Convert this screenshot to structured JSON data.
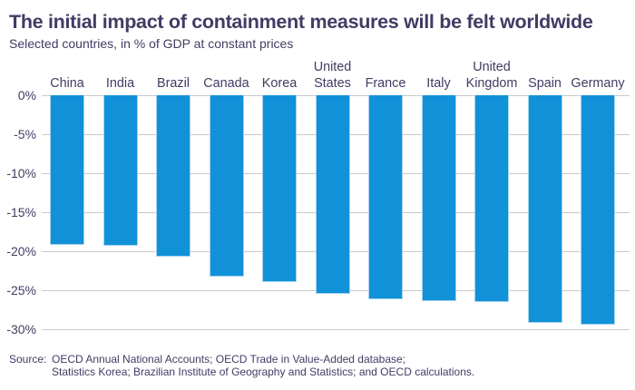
{
  "header": {
    "title": "The initial impact of containment measures will be felt worldwide",
    "subtitle": "Selected countries, in % of GDP at constant prices"
  },
  "chart_data": {
    "type": "bar",
    "title": "The initial impact of containment measures will be felt worldwide",
    "subtitle": "Selected countries, in % of GDP at constant prices",
    "categories": [
      "China",
      "India",
      "Brazil",
      "Canada",
      "Korea",
      "United States",
      "France",
      "Italy",
      "United Kingdom",
      "Spain",
      "Germany"
    ],
    "category_label_lines": [
      [
        "China"
      ],
      [
        "India"
      ],
      [
        "Brazil"
      ],
      [
        "Canada"
      ],
      [
        "Korea"
      ],
      [
        "United",
        "States"
      ],
      [
        "France"
      ],
      [
        "Italy"
      ],
      [
        "United",
        "Kingdom"
      ],
      [
        "Spain"
      ],
      [
        "Germany"
      ]
    ],
    "values": [
      -19.2,
      -19.3,
      -20.7,
      -23.2,
      -24.0,
      -25.5,
      -26.2,
      -26.4,
      -26.5,
      -29.2,
      -29.4
    ],
    "unit": "% of GDP at constant prices",
    "xlabel": "",
    "ylabel": "",
    "ylim": [
      -30,
      0
    ],
    "yticks": [
      0,
      -5,
      -10,
      -15,
      -20,
      -25,
      -30
    ],
    "ytick_labels": [
      "0%",
      "-5%",
      "-10%",
      "-15%",
      "-20%",
      "-25%",
      "-30%"
    ],
    "grid": true,
    "legend": "none",
    "bar_color": "#1191d8",
    "bar_edge_color": "#a5d3f0",
    "gridline_color": "#c9c9c9",
    "text_color": "#443a64"
  },
  "source": {
    "label": "Source:",
    "lines": [
      "OECD Annual National Accounts; OECD Trade in Value-Added database;",
      "Statistics Korea; Brazilian Institute of Geography and Statistics; and OECD calculations."
    ]
  }
}
